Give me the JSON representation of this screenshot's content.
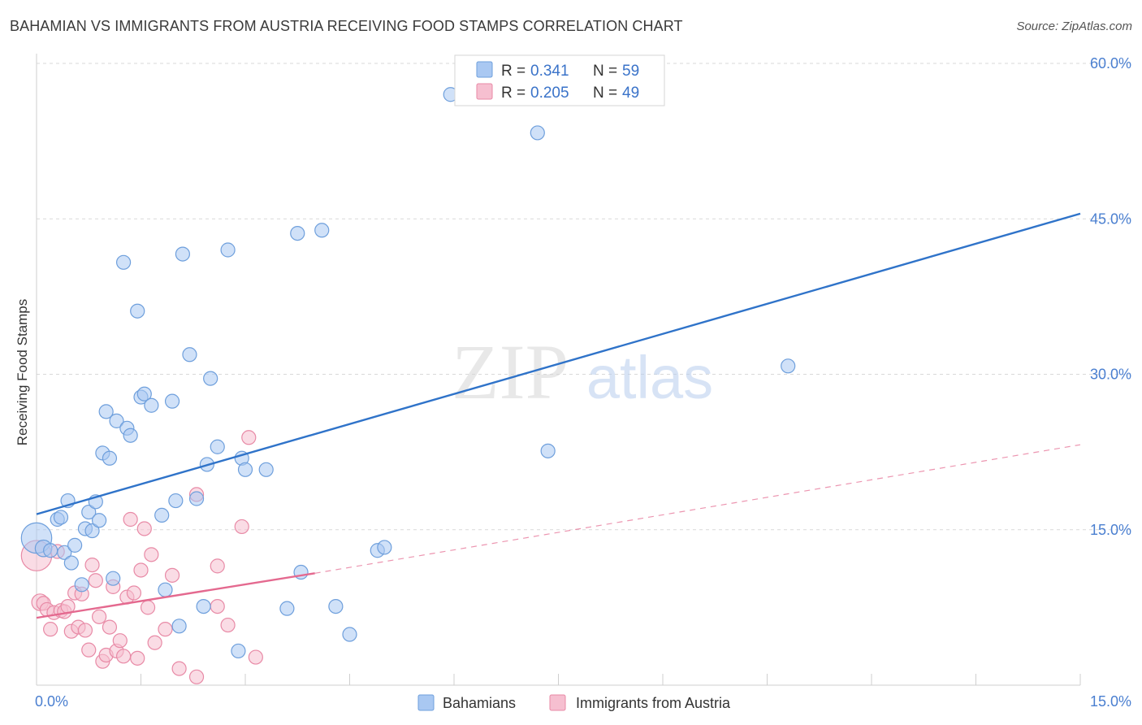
{
  "title": "BAHAMIAN VS IMMIGRANTS FROM AUSTRIA RECEIVING FOOD STAMPS CORRELATION CHART",
  "source": "Source: ZipAtlas.com",
  "watermark": {
    "zip": "ZIP",
    "atlas": "atlas"
  },
  "colors": {
    "blue_fill": "#a9c8f2",
    "blue_stroke": "#6e9fdc",
    "blue_line": "#2f73c9",
    "pink_fill": "#f6bfd0",
    "pink_stroke": "#e88aa6",
    "pink_line": "#e4698f",
    "accent_text": "#3a73c9",
    "grid": "#d9d9d9"
  },
  "legend": {
    "r_label": "R =",
    "n_label": "N =",
    "rows": [
      {
        "r": "0.341",
        "n": "59",
        "series": "blue"
      },
      {
        "r": "0.205",
        "n": "49",
        "series": "pink"
      }
    ]
  },
  "chart_data": {
    "type": "scatter",
    "xlabel": "",
    "ylabel": "Receiving Food Stamps",
    "xlim": [
      0,
      15
    ],
    "ylim": [
      0,
      60
    ],
    "x_tick_labels": [
      {
        "value": 0,
        "label": "0.0%"
      },
      {
        "value": 15,
        "label": "15.0%"
      }
    ],
    "x_minor_ticks": [
      0,
      1.5,
      3,
      4.5,
      6,
      7.5,
      9,
      10.5,
      12,
      13.5,
      15
    ],
    "y_ticks": [
      {
        "value": 15,
        "label": "15.0%"
      },
      {
        "value": 30,
        "label": "30.0%"
      },
      {
        "value": 45,
        "label": "45.0%"
      },
      {
        "value": 60,
        "label": "60.0%"
      }
    ],
    "series": [
      {
        "name": "Bahamians",
        "color": "blue",
        "trend": {
          "x0": 0,
          "y0": 16.5,
          "x1": 15,
          "y1": 45.5,
          "dashed_from": null
        },
        "points": [
          [
            0.0,
            14.2,
            2.2
          ],
          [
            0.1,
            13.2,
            1.2
          ],
          [
            0.2,
            13.0,
            1
          ],
          [
            0.3,
            16.0,
            1
          ],
          [
            0.35,
            16.2,
            1
          ],
          [
            0.4,
            12.8,
            1
          ],
          [
            0.45,
            17.8,
            1
          ],
          [
            0.5,
            11.8,
            1
          ],
          [
            0.55,
            13.5,
            1
          ],
          [
            0.65,
            9.7,
            1
          ],
          [
            0.7,
            15.1,
            1
          ],
          [
            0.75,
            16.7,
            1
          ],
          [
            0.8,
            14.9,
            1
          ],
          [
            0.85,
            17.7,
            1
          ],
          [
            0.9,
            15.9,
            1
          ],
          [
            0.95,
            22.4,
            1
          ],
          [
            1.0,
            26.4,
            1
          ],
          [
            1.05,
            21.9,
            1
          ],
          [
            1.1,
            10.3,
            1
          ],
          [
            1.15,
            25.5,
            1
          ],
          [
            1.25,
            40.8,
            1
          ],
          [
            1.3,
            24.8,
            1
          ],
          [
            1.35,
            24.1,
            1
          ],
          [
            1.45,
            36.1,
            1
          ],
          [
            1.5,
            27.8,
            1
          ],
          [
            1.55,
            28.1,
            1
          ],
          [
            1.65,
            27.0,
            1
          ],
          [
            1.8,
            16.4,
            1
          ],
          [
            1.85,
            9.2,
            1
          ],
          [
            1.95,
            27.4,
            1
          ],
          [
            2.0,
            17.8,
            1
          ],
          [
            2.05,
            5.7,
            1
          ],
          [
            2.1,
            41.6,
            1
          ],
          [
            2.2,
            31.9,
            1
          ],
          [
            2.3,
            18.0,
            1
          ],
          [
            2.4,
            7.6,
            1
          ],
          [
            2.45,
            21.3,
            1
          ],
          [
            2.5,
            29.6,
            1
          ],
          [
            2.6,
            23.0,
            1
          ],
          [
            2.75,
            42.0,
            1
          ],
          [
            2.9,
            3.3,
            1
          ],
          [
            2.95,
            21.9,
            1
          ],
          [
            3.0,
            20.8,
            1
          ],
          [
            3.3,
            20.8,
            1
          ],
          [
            3.6,
            7.4,
            1
          ],
          [
            3.75,
            43.6,
            1
          ],
          [
            3.8,
            10.9,
            1
          ],
          [
            4.1,
            43.9,
            1
          ],
          [
            4.3,
            7.6,
            1
          ],
          [
            4.5,
            4.9,
            1
          ],
          [
            4.9,
            13.0,
            1
          ],
          [
            5.0,
            13.3,
            1
          ],
          [
            5.95,
            57.0,
            1
          ],
          [
            7.2,
            53.3,
            1
          ],
          [
            7.35,
            22.6,
            1
          ],
          [
            10.8,
            30.8,
            1
          ]
        ]
      },
      {
        "name": "Immigrants from Austria",
        "color": "pink",
        "trend": {
          "x0": 0,
          "y0": 6.5,
          "x1": 4.0,
          "y1": 10.8,
          "dashed_from": 4.0,
          "x2": 15,
          "y2": 23.2
        },
        "points": [
          [
            0.0,
            12.5,
            2.2
          ],
          [
            0.05,
            8.0,
            1.2
          ],
          [
            0.1,
            7.9,
            1
          ],
          [
            0.15,
            7.3,
            1
          ],
          [
            0.2,
            5.4,
            1
          ],
          [
            0.25,
            7.0,
            1
          ],
          [
            0.3,
            12.9,
            1
          ],
          [
            0.35,
            7.2,
            1
          ],
          [
            0.4,
            7.1,
            1
          ],
          [
            0.45,
            7.6,
            1
          ],
          [
            0.5,
            5.2,
            1
          ],
          [
            0.55,
            8.9,
            1
          ],
          [
            0.6,
            5.6,
            1
          ],
          [
            0.65,
            8.8,
            1
          ],
          [
            0.7,
            5.3,
            1
          ],
          [
            0.75,
            3.4,
            1
          ],
          [
            0.8,
            11.6,
            1
          ],
          [
            0.85,
            10.1,
            1
          ],
          [
            0.9,
            6.6,
            1
          ],
          [
            0.95,
            2.3,
            1
          ],
          [
            1.0,
            2.9,
            1
          ],
          [
            1.05,
            5.6,
            1
          ],
          [
            1.1,
            9.5,
            1
          ],
          [
            1.15,
            3.3,
            1
          ],
          [
            1.2,
            4.3,
            1
          ],
          [
            1.25,
            2.8,
            1
          ],
          [
            1.3,
            8.5,
            1
          ],
          [
            1.35,
            16.0,
            1
          ],
          [
            1.4,
            8.9,
            1
          ],
          [
            1.45,
            2.6,
            1
          ],
          [
            1.5,
            11.1,
            1
          ],
          [
            1.55,
            15.1,
            1
          ],
          [
            1.6,
            7.5,
            1
          ],
          [
            1.65,
            12.6,
            1
          ],
          [
            1.7,
            4.1,
            1
          ],
          [
            1.85,
            5.4,
            1
          ],
          [
            1.95,
            10.6,
            1
          ],
          [
            2.05,
            1.6,
            1
          ],
          [
            2.3,
            0.8,
            1
          ],
          [
            2.3,
            18.4,
            1
          ],
          [
            2.6,
            7.6,
            1
          ],
          [
            2.6,
            11.5,
            1
          ],
          [
            2.75,
            5.8,
            1
          ],
          [
            2.95,
            15.3,
            1
          ],
          [
            3.05,
            23.9,
            1
          ],
          [
            3.15,
            2.7,
            1
          ]
        ]
      }
    ]
  },
  "bottom_legend": [
    {
      "label": "Bahamians",
      "series": "blue"
    },
    {
      "label": "Immigrants from Austria",
      "series": "pink"
    }
  ]
}
